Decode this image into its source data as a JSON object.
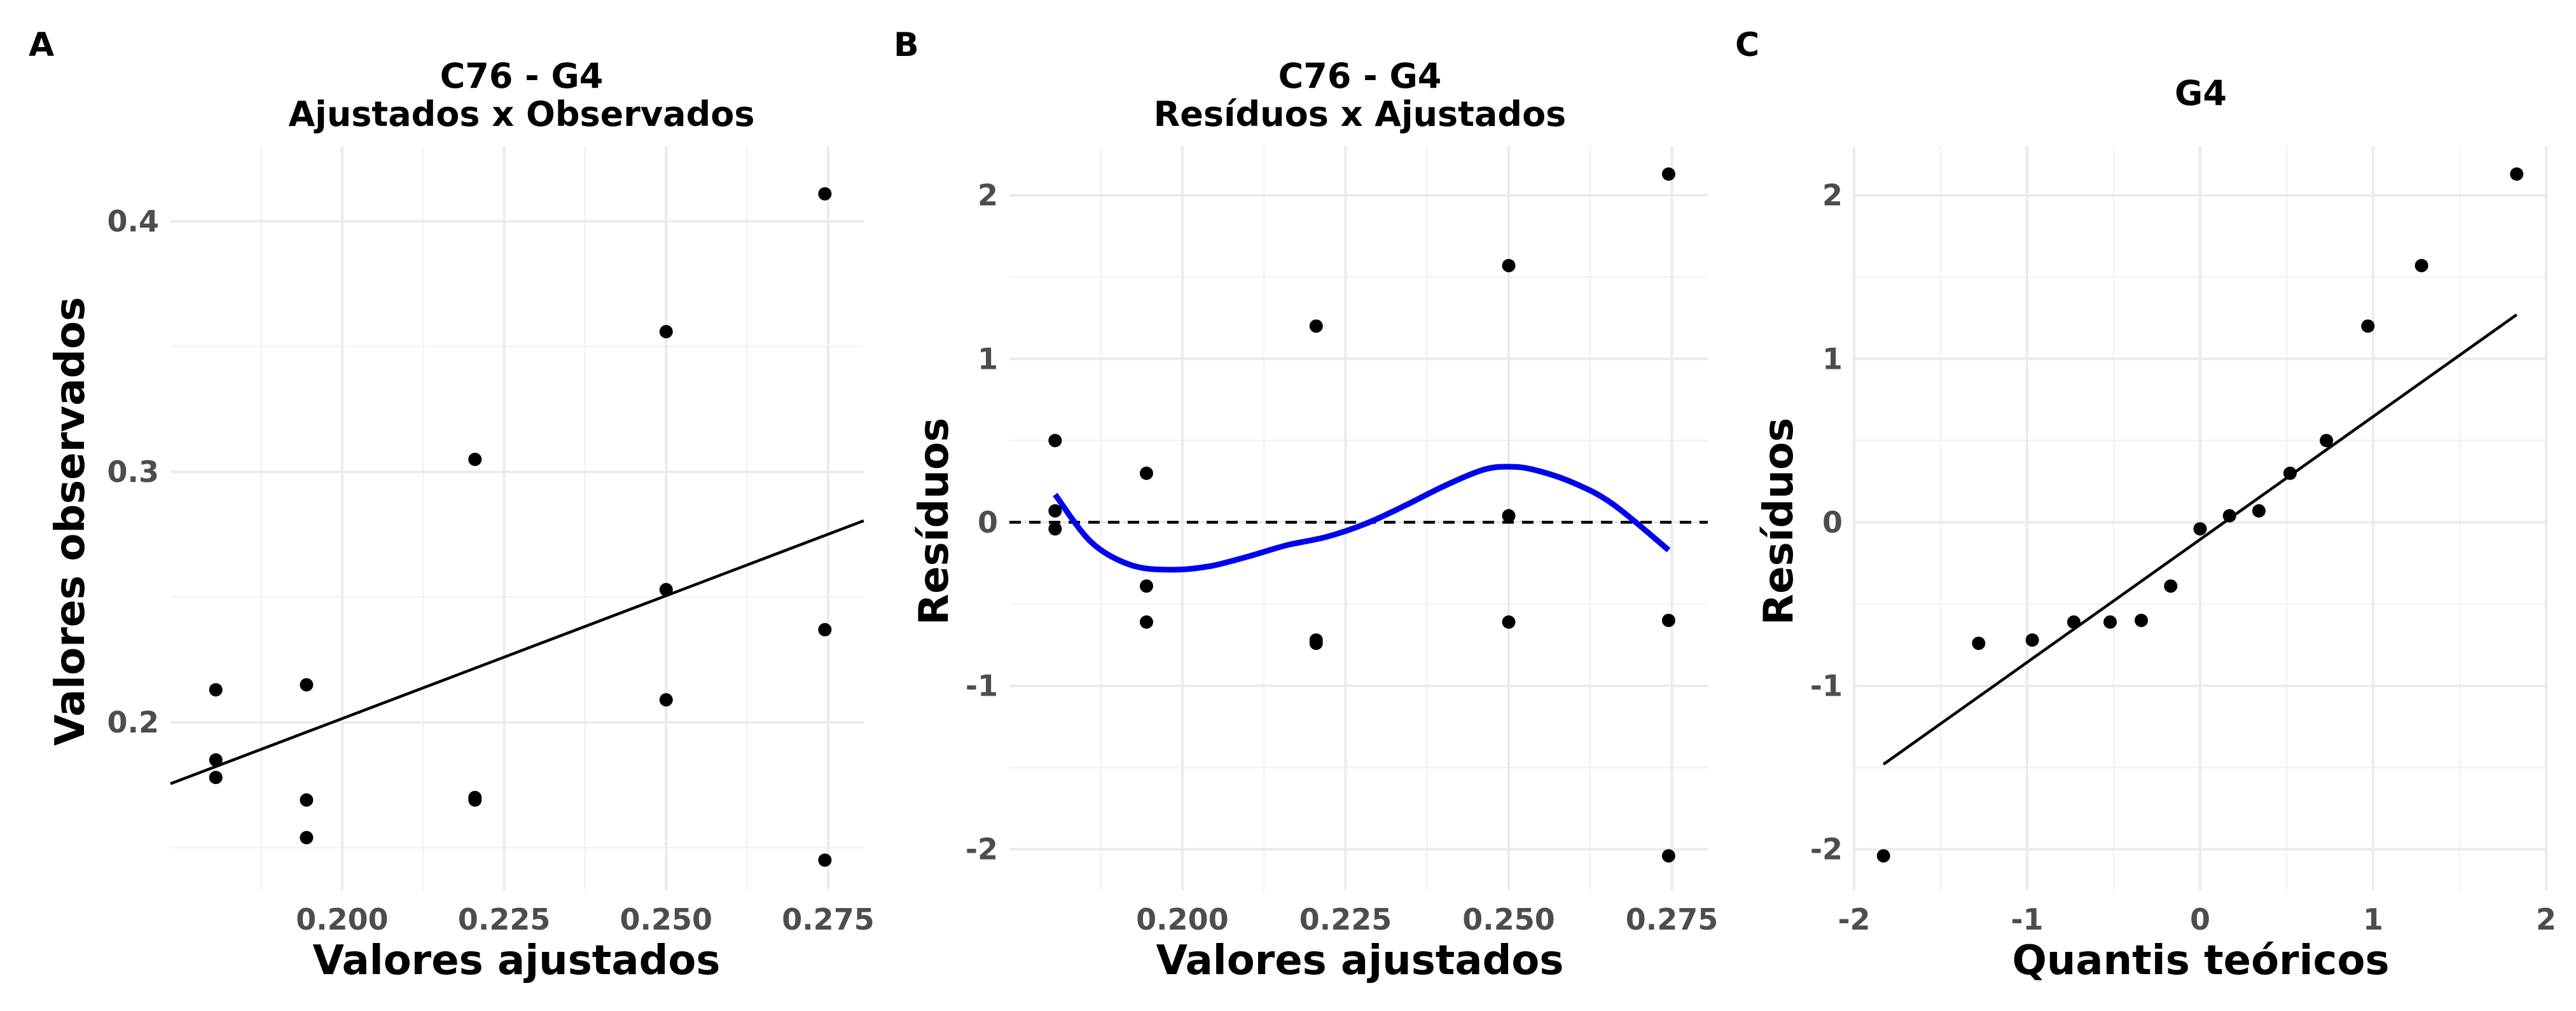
{
  "chart_data": [
    {
      "type": "scatter",
      "panel_tag": "A",
      "title": "C76 - G4",
      "subtitle": "Ajustados x Observados",
      "xlabel": "Valores ajustados",
      "ylabel": "Valores observados",
      "xlim": [
        0.1735,
        0.2805
      ],
      "ylim": [
        0.133,
        0.43
      ],
      "xticks": [
        0.2,
        0.225,
        0.25,
        0.275
      ],
      "xtick_labels": [
        "0.200",
        "0.225",
        "0.250",
        "0.275"
      ],
      "yticks": [
        0.2,
        0.3,
        0.4
      ],
      "ytick_labels": [
        "0.2",
        "0.3",
        "0.4"
      ],
      "grid": true,
      "points": [
        {
          "x": 0.1805,
          "y": 0.213
        },
        {
          "x": 0.1805,
          "y": 0.185
        },
        {
          "x": 0.1805,
          "y": 0.178
        },
        {
          "x": 0.1945,
          "y": 0.215
        },
        {
          "x": 0.1945,
          "y": 0.169
        },
        {
          "x": 0.1945,
          "y": 0.154
        },
        {
          "x": 0.2205,
          "y": 0.305
        },
        {
          "x": 0.2205,
          "y": 0.17
        },
        {
          "x": 0.2205,
          "y": 0.169
        },
        {
          "x": 0.25,
          "y": 0.356
        },
        {
          "x": 0.25,
          "y": 0.253
        },
        {
          "x": 0.25,
          "y": 0.209
        },
        {
          "x": 0.2745,
          "y": 0.411
        },
        {
          "x": 0.2745,
          "y": 0.237
        },
        {
          "x": 0.2745,
          "y": 0.145
        }
      ],
      "lines": [
        {
          "style": "solid",
          "color": "#000000",
          "points": [
            [
              0.1735,
              0.1755
            ],
            [
              0.2805,
              0.2805
            ]
          ]
        }
      ]
    },
    {
      "type": "scatter",
      "panel_tag": "B",
      "title": "C76 - G4",
      "subtitle": "Resíduos x Ajustados",
      "xlabel": "Valores ajustados",
      "ylabel": "Resíduos",
      "xlim": [
        0.1735,
        0.2805
      ],
      "ylim": [
        -2.25,
        2.3
      ],
      "xticks": [
        0.2,
        0.225,
        0.25,
        0.275
      ],
      "xtick_labels": [
        "0.200",
        "0.225",
        "0.250",
        "0.275"
      ],
      "yticks": [
        -2,
        -1,
        0,
        1,
        2
      ],
      "ytick_labels": [
        "-2",
        "-1",
        "0",
        "1",
        "2"
      ],
      "grid": true,
      "points": [
        {
          "x": 0.1805,
          "y": 0.5
        },
        {
          "x": 0.1805,
          "y": 0.07
        },
        {
          "x": 0.1805,
          "y": -0.04
        },
        {
          "x": 0.1945,
          "y": 0.3
        },
        {
          "x": 0.1945,
          "y": -0.39
        },
        {
          "x": 0.1945,
          "y": -0.61
        },
        {
          "x": 0.2205,
          "y": 1.2
        },
        {
          "x": 0.2205,
          "y": -0.72
        },
        {
          "x": 0.2205,
          "y": -0.74
        },
        {
          "x": 0.25,
          "y": 1.57
        },
        {
          "x": 0.25,
          "y": 0.04
        },
        {
          "x": 0.25,
          "y": -0.61
        },
        {
          "x": 0.2745,
          "y": 2.13
        },
        {
          "x": 0.2745,
          "y": -0.6
        },
        {
          "x": 0.2745,
          "y": -2.04
        }
      ],
      "lines": [
        {
          "style": "dashed",
          "color": "#000000",
          "points": [
            [
              0.1735,
              0.0
            ],
            [
              0.2805,
              0.0
            ]
          ]
        },
        {
          "style": "solid",
          "color": "#0000ee",
          "smooth": true,
          "points": [
            [
              0.1805,
              0.17
            ],
            [
              0.186,
              -0.12
            ],
            [
              0.192,
              -0.26
            ],
            [
              0.198,
              -0.29
            ],
            [
              0.204,
              -0.27
            ],
            [
              0.21,
              -0.21
            ],
            [
              0.216,
              -0.14
            ],
            [
              0.222,
              -0.09
            ],
            [
              0.228,
              -0.01
            ],
            [
              0.234,
              0.1
            ],
            [
              0.24,
              0.22
            ],
            [
              0.246,
              0.32
            ],
            [
              0.25,
              0.34
            ],
            [
              0.254,
              0.32
            ],
            [
              0.26,
              0.24
            ],
            [
              0.266,
              0.11
            ],
            [
              0.2745,
              -0.17
            ]
          ]
        }
      ]
    },
    {
      "type": "scatter",
      "panel_tag": "C",
      "title": "G4",
      "subtitle": "",
      "xlabel": "Quantis teóricos",
      "ylabel": "Resíduos",
      "xlim": [
        -2.0,
        2.0
      ],
      "ylim": [
        -2.25,
        2.3
      ],
      "xticks": [
        -2,
        -1,
        0,
        1,
        2
      ],
      "xtick_labels": [
        "-2",
        "-1",
        "0",
        "1",
        "2"
      ],
      "yticks": [
        -2,
        -1,
        0,
        1,
        2
      ],
      "ytick_labels": [
        "-2",
        "-1",
        "0",
        "1",
        "2"
      ],
      "grid": true,
      "points": [
        {
          "x": -1.83,
          "y": -2.04
        },
        {
          "x": -1.28,
          "y": -0.74
        },
        {
          "x": -0.97,
          "y": -0.72
        },
        {
          "x": -0.73,
          "y": -0.61
        },
        {
          "x": -0.52,
          "y": -0.61
        },
        {
          "x": -0.34,
          "y": -0.6
        },
        {
          "x": -0.17,
          "y": -0.39
        },
        {
          "x": 0.0,
          "y": -0.04
        },
        {
          "x": 0.17,
          "y": 0.04
        },
        {
          "x": 0.34,
          "y": 0.07
        },
        {
          "x": 0.52,
          "y": 0.3
        },
        {
          "x": 0.73,
          "y": 0.5
        },
        {
          "x": 0.97,
          "y": 1.2
        },
        {
          "x": 1.28,
          "y": 1.57
        },
        {
          "x": 1.83,
          "y": 2.13
        }
      ],
      "lines": [
        {
          "style": "solid",
          "color": "#000000",
          "points": [
            [
              -1.83,
              -1.48
            ],
            [
              1.83,
              1.27
            ]
          ]
        }
      ]
    }
  ]
}
